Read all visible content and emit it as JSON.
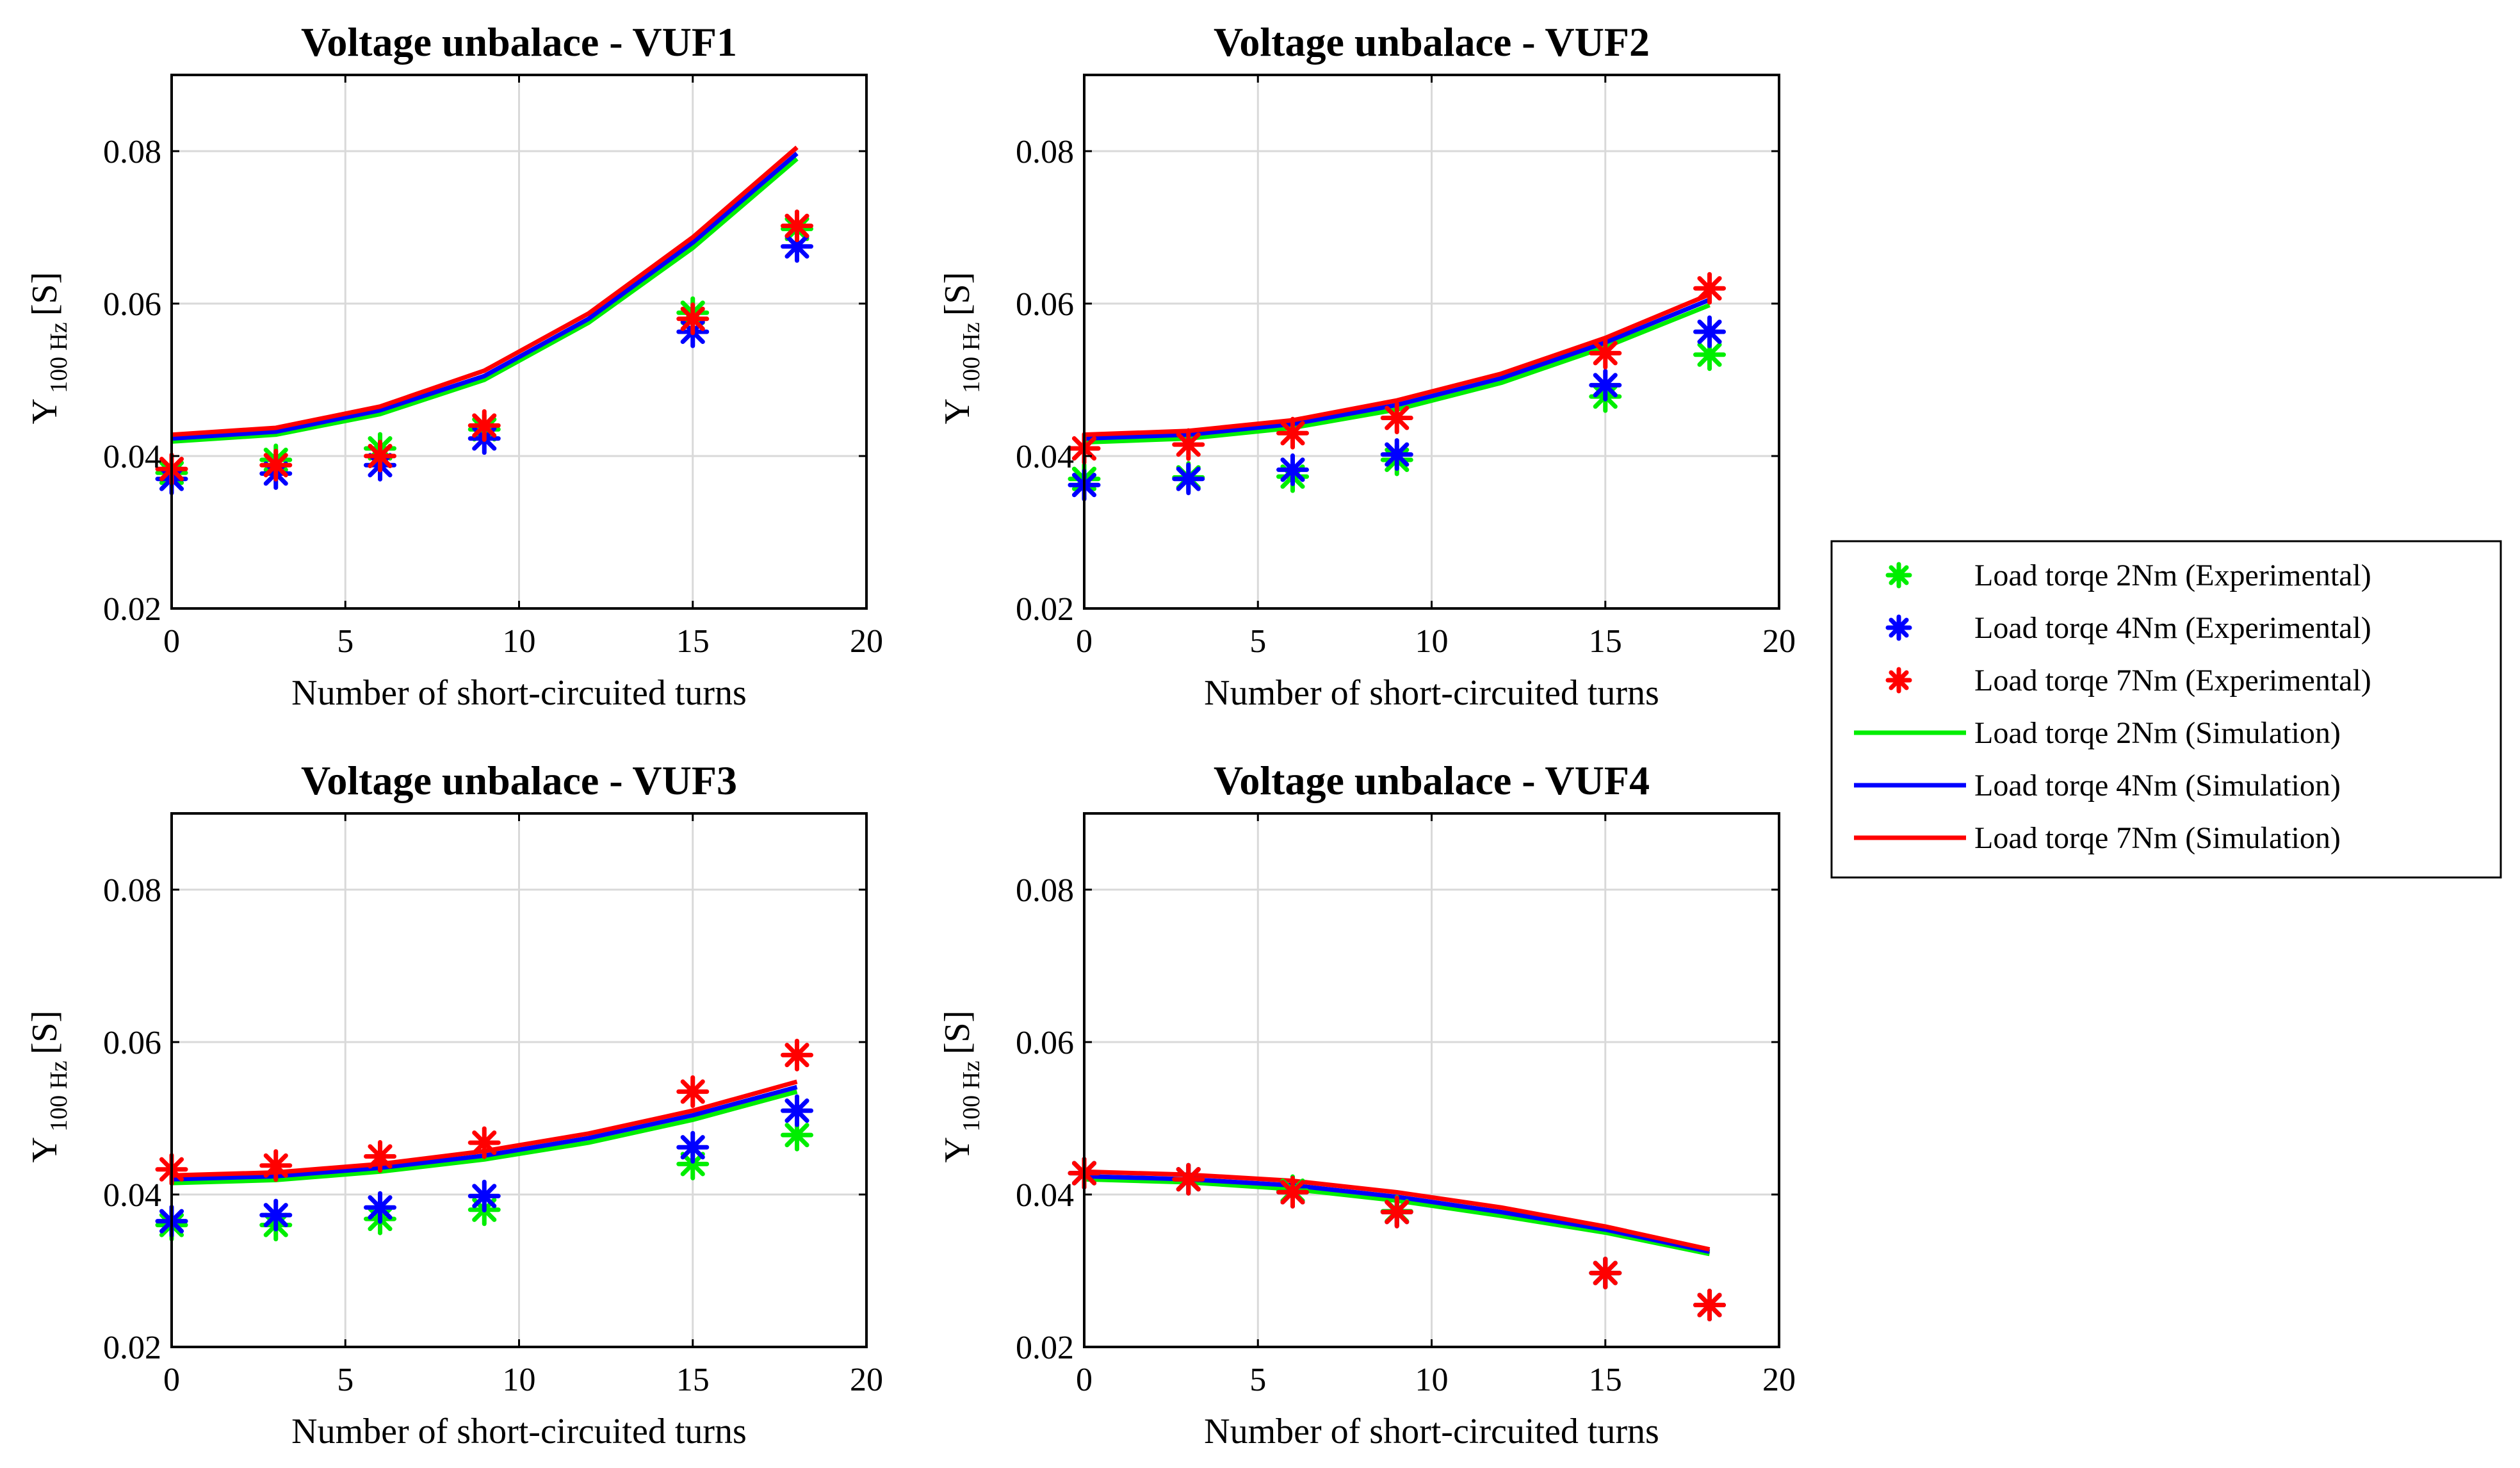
{
  "legend": {
    "items": [
      {
        "id": "exp2",
        "label": "Load torqe 2Nm (Experimental)",
        "kind": "marker",
        "color": "#00ee00"
      },
      {
        "id": "exp4",
        "label": "Load torqe 4Nm (Experimental)",
        "kind": "marker",
        "color": "#0000ff"
      },
      {
        "id": "exp7",
        "label": "Load torqe 7Nm (Experimental)",
        "kind": "marker",
        "color": "#ff0000"
      },
      {
        "id": "sim2",
        "label": "Load torqe 2Nm (Simulation)",
        "kind": "line",
        "color": "#00ee00"
      },
      {
        "id": "sim4",
        "label": "Load torqe 4Nm (Simulation)",
        "kind": "line",
        "color": "#0000ff"
      },
      {
        "id": "sim7",
        "label": "Load torqe 7Nm (Simulation)",
        "kind": "line",
        "color": "#ff0000"
      }
    ]
  },
  "chart_data": [
    {
      "type": "scatter",
      "title": "Voltage unbalace - VUF1",
      "xlabel": "Number of short-circuited turns",
      "ylabel_main": "Y",
      "ylabel_sub": "100 Hz",
      "ylabel_unit": "[S]",
      "xlim": [
        0,
        20
      ],
      "ylim": [
        0.02,
        0.09
      ],
      "xticks": [
        0,
        5,
        10,
        15,
        20
      ],
      "xtick_labels": [
        "0",
        "5",
        "10",
        "15",
        "20"
      ],
      "yticks": [
        0.02,
        0.04,
        0.06,
        0.08
      ],
      "ytick_labels": [
        "0.02",
        "0.04",
        "0.06",
        "0.08"
      ],
      "grid": true,
      "exp_x": [
        0,
        3,
        6,
        9,
        15,
        18
      ],
      "experimental": [
        {
          "id": "exp2",
          "values": [
            0.0378,
            0.0395,
            0.041,
            0.0435,
            0.0588,
            0.0698
          ]
        },
        {
          "id": "exp4",
          "values": [
            0.037,
            0.0377,
            0.0388,
            0.0423,
            0.0563,
            0.0675
          ]
        },
        {
          "id": "exp7",
          "values": [
            0.0383,
            0.0388,
            0.04,
            0.044,
            0.058,
            0.0702
          ]
        }
      ],
      "sim_x": [
        0,
        3,
        6,
        9,
        12,
        15,
        18
      ],
      "simulation": [
        {
          "id": "sim2",
          "values": [
            0.0419,
            0.0428,
            0.0455,
            0.05,
            0.0575,
            0.0673,
            0.079
          ]
        },
        {
          "id": "sim4",
          "values": [
            0.0423,
            0.0432,
            0.046,
            0.0505,
            0.058,
            0.068,
            0.0797
          ]
        },
        {
          "id": "sim7",
          "values": [
            0.0428,
            0.0437,
            0.0465,
            0.0512,
            0.0587,
            0.0687,
            0.0805
          ]
        }
      ]
    },
    {
      "type": "scatter",
      "title": "Voltage unbalace - VUF2",
      "xlabel": "Number of short-circuited turns",
      "ylabel_main": "Y",
      "ylabel_sub": "100 Hz",
      "ylabel_unit": "[S]",
      "xlim": [
        0,
        20
      ],
      "ylim": [
        0.02,
        0.09
      ],
      "xticks": [
        0,
        5,
        10,
        15,
        20
      ],
      "xtick_labels": [
        "0",
        "5",
        "10",
        "15",
        "20"
      ],
      "yticks": [
        0.02,
        0.04,
        0.06,
        0.08
      ],
      "ytick_labels": [
        "0.02",
        "0.04",
        "0.06",
        "0.08"
      ],
      "grid": true,
      "exp_x": [
        0,
        3,
        6,
        9,
        15,
        18
      ],
      "experimental": [
        {
          "id": "exp2",
          "values": [
            0.037,
            0.0372,
            0.0373,
            0.0395,
            0.0478,
            0.0533
          ]
        },
        {
          "id": "exp4",
          "values": [
            0.0362,
            0.037,
            0.0382,
            0.0402,
            0.0493,
            0.0563
          ]
        },
        {
          "id": "exp7",
          "values": [
            0.041,
            0.0415,
            0.043,
            0.045,
            0.0535,
            0.062
          ]
        }
      ],
      "sim_x": [
        0,
        3,
        6,
        9,
        12,
        15,
        18
      ],
      "simulation": [
        {
          "id": "sim2",
          "values": [
            0.0418,
            0.0423,
            0.0437,
            0.0461,
            0.0496,
            0.0543,
            0.0598
          ]
        },
        {
          "id": "sim4",
          "values": [
            0.0423,
            0.0428,
            0.0442,
            0.0467,
            0.0502,
            0.0549,
            0.0605
          ]
        },
        {
          "id": "sim7",
          "values": [
            0.0428,
            0.0433,
            0.0447,
            0.0473,
            0.0508,
            0.0555,
            0.0612
          ]
        }
      ]
    },
    {
      "type": "scatter",
      "title": "Voltage unbalace - VUF3",
      "xlabel": "Number of short-circuited turns",
      "ylabel_main": "Y",
      "ylabel_sub": "100 Hz",
      "ylabel_unit": "[S]",
      "xlim": [
        0,
        20
      ],
      "ylim": [
        0.02,
        0.09
      ],
      "xticks": [
        0,
        5,
        10,
        15,
        20
      ],
      "xtick_labels": [
        "0",
        "5",
        "10",
        "15",
        "20"
      ],
      "yticks": [
        0.02,
        0.04,
        0.06,
        0.08
      ],
      "ytick_labels": [
        "0.02",
        "0.04",
        "0.06",
        "0.08"
      ],
      "grid": true,
      "exp_x": [
        0,
        3,
        6,
        9,
        15,
        18
      ],
      "experimental": [
        {
          "id": "exp2",
          "values": [
            0.036,
            0.036,
            0.0368,
            0.038,
            0.044,
            0.0478
          ]
        },
        {
          "id": "exp4",
          "values": [
            0.0365,
            0.0373,
            0.0383,
            0.0398,
            0.0462,
            0.051
          ]
        },
        {
          "id": "exp7",
          "values": [
            0.0433,
            0.0438,
            0.045,
            0.0468,
            0.0535,
            0.0583
          ]
        }
      ],
      "sim_x": [
        0,
        3,
        6,
        9,
        12,
        15,
        18
      ],
      "simulation": [
        {
          "id": "sim2",
          "values": [
            0.0415,
            0.0419,
            0.043,
            0.0446,
            0.0468,
            0.0498,
            0.0535
          ]
        },
        {
          "id": "sim4",
          "values": [
            0.042,
            0.0424,
            0.0435,
            0.0451,
            0.0474,
            0.0504,
            0.0541
          ]
        },
        {
          "id": "sim7",
          "values": [
            0.0425,
            0.0429,
            0.044,
            0.0457,
            0.048,
            0.051,
            0.0548
          ]
        }
      ]
    },
    {
      "type": "scatter",
      "title": "Voltage unbalace - VUF4",
      "xlabel": "Number of short-circuited turns",
      "ylabel_main": "Y",
      "ylabel_sub": "100 Hz",
      "ylabel_unit": "[S]",
      "xlim": [
        0,
        20
      ],
      "ylim": [
        0.02,
        0.09
      ],
      "xticks": [
        0,
        5,
        10,
        15,
        20
      ],
      "xtick_labels": [
        "0",
        "5",
        "10",
        "15",
        "20"
      ],
      "yticks": [
        0.02,
        0.04,
        0.06,
        0.08
      ],
      "ytick_labels": [
        "0.02",
        "0.04",
        "0.06",
        "0.08"
      ],
      "grid": true,
      "exp_x": [
        0,
        3,
        6,
        9,
        15,
        18
      ],
      "experimental": [
        {
          "id": "exp2",
          "values": [
            0.0428,
            0.042,
            0.0405,
            0.0378,
            0.0297,
            0.0255
          ]
        },
        {
          "id": "exp4",
          "values": [
            0.0428,
            0.042,
            0.0403,
            0.0377,
            0.0297,
            0.0255
          ]
        },
        {
          "id": "exp7",
          "values": [
            0.0428,
            0.042,
            0.0403,
            0.0377,
            0.0297,
            0.0255
          ]
        }
      ],
      "sim_x": [
        0,
        3,
        6,
        9,
        12,
        15,
        18
      ],
      "simulation": [
        {
          "id": "sim2",
          "values": [
            0.042,
            0.0416,
            0.0407,
            0.0392,
            0.0372,
            0.035,
            0.0322
          ]
        },
        {
          "id": "sim4",
          "values": [
            0.0424,
            0.042,
            0.0412,
            0.0397,
            0.0377,
            0.0354,
            0.0325
          ]
        },
        {
          "id": "sim7",
          "values": [
            0.043,
            0.0426,
            0.0418,
            0.0403,
            0.0383,
            0.0358,
            0.0328
          ]
        }
      ]
    }
  ]
}
